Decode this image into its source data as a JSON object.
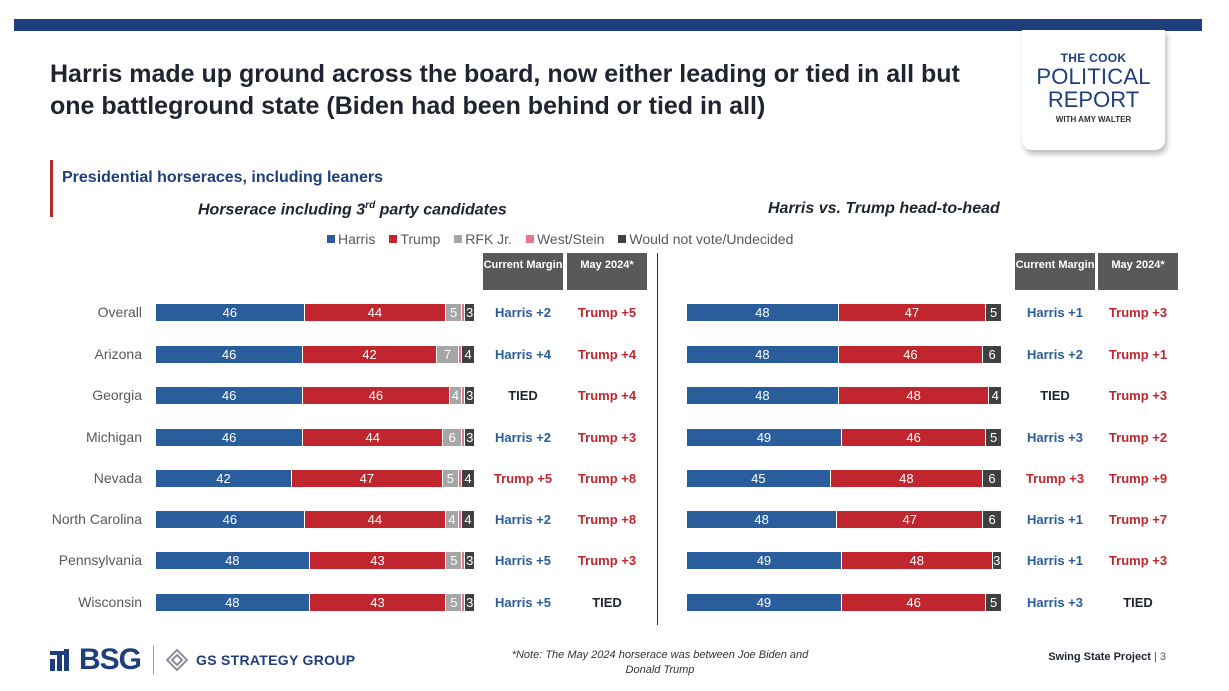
{
  "header": {
    "title": "Harris made up ground across the board, now either leading or tied in all but one battleground state (Biden had been behind or tied in all)",
    "subtitle": "Presidential horseraces, including leaners"
  },
  "logo": {
    "line1": "THE COOK",
    "line2": "POLITICAL",
    "line3": "REPORT",
    "line4": "WITH AMY WALTER"
  },
  "legend": [
    {
      "label": "Harris",
      "color": "#2a5d9b"
    },
    {
      "label": "Trump",
      "color": "#c1262f"
    },
    {
      "label": "RFK Jr.",
      "color": "#a6a6a6"
    },
    {
      "label": "West/Stein",
      "color": "#e8768a"
    },
    {
      "label": "Would not vote/Undecided",
      "color": "#404040"
    }
  ],
  "column_headers": {
    "current": "Current Margin",
    "may": "May 2024*"
  },
  "chart_data": [
    {
      "type": "bar",
      "title": "Horserace including 3rd party candidates",
      "categories": [
        "Overall",
        "Arizona",
        "Georgia",
        "Michigan",
        "Nevada",
        "North Carolina",
        "Pennsylvania",
        "Wisconsin"
      ],
      "series": [
        {
          "name": "Harris",
          "values": [
            46,
            46,
            46,
            46,
            42,
            46,
            48,
            48
          ]
        },
        {
          "name": "Trump",
          "values": [
            44,
            42,
            46,
            44,
            47,
            44,
            43,
            43
          ]
        },
        {
          "name": "RFK Jr.",
          "values": [
            5,
            7,
            4,
            6,
            5,
            4,
            5,
            5
          ]
        },
        {
          "name": "West/Stein",
          "values": [
            1,
            1,
            1,
            1,
            1,
            1,
            1,
            1
          ]
        },
        {
          "name": "Would not vote/Undecided",
          "values": [
            3,
            4,
            3,
            3,
            4,
            4,
            3,
            3
          ]
        }
      ],
      "labels": {
        "Harris": [
          "46",
          "46",
          "46",
          "46",
          "42",
          "46",
          "48",
          "48"
        ],
        "Trump": [
          "44",
          "42",
          "46",
          "44",
          "47",
          "44",
          "43",
          "43"
        ],
        "RFK Jr.": [
          "5",
          "7",
          "4",
          "6",
          "5",
          "4",
          "5",
          "5"
        ],
        "West/Stein": [
          "",
          "",
          "",
          "",
          "",
          "",
          "",
          ""
        ],
        "Would not vote/Undecided": [
          "3",
          "4",
          "3",
          "3",
          "4",
          "4",
          "3",
          "3"
        ]
      },
      "current_margin": [
        "Harris +2",
        "Harris +4",
        "TIED",
        "Harris +2",
        "Trump +5",
        "Harris +2",
        "Harris +5",
        "Harris +5"
      ],
      "may_2024": [
        "Trump +5",
        "Trump +4",
        "Trump +4",
        "Trump +3",
        "Trump +8",
        "Trump +8",
        "Trump +3",
        "TIED"
      ]
    },
    {
      "type": "bar",
      "title": "Harris vs. Trump head-to-head",
      "categories": [
        "Overall",
        "Arizona",
        "Georgia",
        "Michigan",
        "Nevada",
        "North Carolina",
        "Pennsylvania",
        "Wisconsin"
      ],
      "series": [
        {
          "name": "Harris",
          "values": [
            48,
            48,
            48,
            49,
            45,
            48,
            49,
            49
          ]
        },
        {
          "name": "Trump",
          "values": [
            47,
            46,
            48,
            46,
            48,
            47,
            48,
            46
          ]
        },
        {
          "name": "Would not vote/Undecided",
          "values": [
            5,
            6,
            4,
            5,
            6,
            6,
            3,
            5
          ]
        }
      ],
      "labels": {
        "Harris": [
          "48",
          "48",
          "48",
          "49",
          "45",
          "48",
          "49",
          "49"
        ],
        "Trump": [
          "47",
          "46",
          "48",
          "46",
          "48",
          "47",
          "48",
          "46"
        ],
        "Would not vote/Undecided": [
          "5",
          "6",
          "4",
          "5",
          "6",
          "6",
          "3",
          "5"
        ]
      },
      "current_margin": [
        "Harris +1",
        "Harris +2",
        "TIED",
        "Harris +3",
        "Trump +3",
        "Harris +1",
        "Harris +1",
        "Harris +3"
      ],
      "may_2024": [
        "Trump +3",
        "Trump +1",
        "Trump +3",
        "Trump +2",
        "Trump +9",
        "Trump +7",
        "Trump +3",
        "TIED"
      ]
    }
  ],
  "colors": {
    "harris": "#2a5d9b",
    "trump": "#c1262f",
    "tied": "#1f2430"
  },
  "footer": {
    "bsg": "BSG",
    "gs": "GS STRATEGY GROUP",
    "note": "*Note: The May 2024 horserace was between Joe Biden and Donald Trump",
    "project": "Swing State Project",
    "page": "3"
  }
}
